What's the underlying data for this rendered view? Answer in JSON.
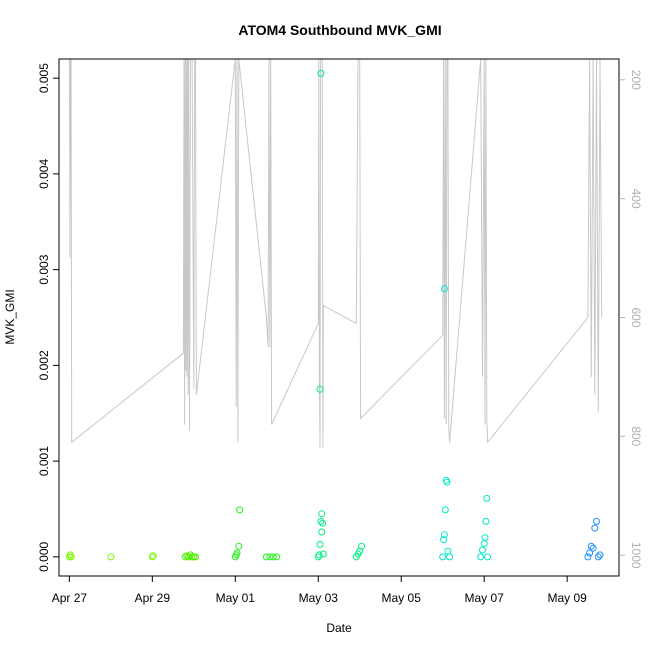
{
  "chart_data": {
    "type": "scatter",
    "title": "ATOM4 Southbound MVK_GMI",
    "xlabel": "Date",
    "ylabel": "MVK_GMI",
    "x_ticks": [
      "Apr 27",
      "Apr 29",
      "May 01",
      "May 03",
      "May 05",
      "May 07",
      "May 09"
    ],
    "y_ticks": [
      "0.000",
      "0.001",
      "0.002",
      "0.003",
      "0.004",
      "0.005"
    ],
    "y2_ticks": [
      "200",
      "400",
      "600",
      "800",
      "1000"
    ],
    "x_range_days": [
      "2016-04-26T18:00",
      "2016-05-10T06:00"
    ],
    "ylim": [
      -0.0002,
      0.0052
    ],
    "y2lim": [
      1035,
      165
    ],
    "y2_reversed": true,
    "colors": {
      "flight_track": "#c8c8c8",
      "axis": "#000000",
      "right_axis": "#b0b0b0"
    },
    "series": [
      {
        "values_note": "",
        "color": "#7cfc00",
        "points": [
          [
            "2016-04-27T00:00",
            0.0
          ],
          [
            "2016-04-27T00:30",
            2e-05
          ],
          [
            "2016-04-27T01:00",
            0.0
          ],
          [
            "2016-04-28T00:00",
            0.0
          ],
          [
            "2016-04-29T00:00",
            0.0
          ],
          [
            "2016-04-29T00:30",
            1e-05
          ]
        ]
      },
      {
        "color": "#4cf000",
        "points": [
          [
            "2016-04-29T19:00",
            0.0
          ],
          [
            "2016-04-29T20:00",
            1e-05
          ],
          [
            "2016-04-29T21:00",
            0.0
          ],
          [
            "2016-04-29T22:00",
            2e-05
          ],
          [
            "2016-04-29T23:00",
            0.0
          ],
          [
            "2016-04-30T00:00",
            0.0
          ],
          [
            "2016-04-30T01:00",
            0.0
          ]
        ]
      },
      {
        "color": "#28f020",
        "points": [
          [
            "2016-05-01T00:00",
            0.0
          ],
          [
            "2016-05-01T00:30",
            2e-05
          ],
          [
            "2016-05-01T01:00",
            4e-05
          ],
          [
            "2016-05-01T02:00",
            0.00011
          ],
          [
            "2016-05-01T02:30",
            0.00049
          ],
          [
            "2016-05-01T18:00",
            0.0
          ],
          [
            "2016-05-01T20:00",
            0.0
          ],
          [
            "2016-05-01T22:00",
            0.0
          ],
          [
            "2016-05-02T00:00",
            0.0
          ]
        ]
      },
      {
        "color": "#00f080",
        "points": [
          [
            "2016-05-03T00:00",
            0.0
          ],
          [
            "2016-05-03T00:30",
            2e-05
          ],
          [
            "2016-05-03T01:00",
            0.00013
          ],
          [
            "2016-05-03T01:30",
            0.00037
          ],
          [
            "2016-05-03T02:00",
            0.00026
          ],
          [
            "2016-05-03T02:00",
            0.00045
          ],
          [
            "2016-05-03T02:30",
            0.00035
          ],
          [
            "2016-05-03T03:00",
            3e-05
          ],
          [
            "2016-05-03T01:30",
            0.00505
          ],
          [
            "2016-05-03T01:00",
            0.00175
          ],
          [
            "2016-05-03T22:00",
            0.0
          ],
          [
            "2016-05-03T23:00",
            3e-05
          ],
          [
            "2016-05-04T00:00",
            6e-05
          ],
          [
            "2016-05-04T01:00",
            0.00011
          ]
        ]
      },
      {
        "color": "#00e8c8",
        "points": [
          [
            "2016-05-06T00:00",
            0.0
          ],
          [
            "2016-05-06T00:30",
            0.00018
          ],
          [
            "2016-05-06T01:00",
            0.00023
          ],
          [
            "2016-05-06T01:30",
            0.00049
          ],
          [
            "2016-05-06T02:00",
            0.0008
          ],
          [
            "2016-05-06T02:30",
            0.00078
          ],
          [
            "2016-05-06T03:00",
            6e-05
          ],
          [
            "2016-05-06T04:00",
            0.0
          ],
          [
            "2016-05-06T01:00",
            0.0028
          ],
          [
            "2016-05-06T22:00",
            0.0
          ],
          [
            "2016-05-06T23:00",
            7e-05
          ],
          [
            "2016-05-07T00:00",
            0.00014
          ],
          [
            "2016-05-07T00:30",
            0.0002
          ],
          [
            "2016-05-07T01:00",
            0.00037
          ],
          [
            "2016-05-07T01:30",
            0.00061
          ],
          [
            "2016-05-07T02:00",
            0.0
          ]
        ]
      },
      {
        "color": "#1e90ff",
        "points": [
          [
            "2016-05-09T12:00",
            0.0
          ],
          [
            "2016-05-09T13:00",
            4e-05
          ],
          [
            "2016-05-09T14:00",
            0.00011
          ],
          [
            "2016-05-09T15:00",
            9e-05
          ],
          [
            "2016-05-09T16:00",
            0.0003
          ],
          [
            "2016-05-09T17:00",
            0.00037
          ],
          [
            "2016-05-09T18:00",
            0.0
          ],
          [
            "2016-05-09T19:00",
            2e-05
          ]
        ]
      }
    ],
    "flight_track_points": [
      [
        "2016-04-27T00:00",
        165
      ],
      [
        "2016-04-27T00:20",
        500
      ],
      [
        "2016-04-27T00:40",
        165
      ],
      [
        "2016-04-27T01:00",
        165
      ],
      [
        "2016-04-27T01:20",
        810
      ],
      [
        "2016-04-29T18:00",
        660
      ],
      [
        "2016-04-29T18:20",
        165
      ],
      [
        "2016-04-29T18:40",
        780
      ],
      [
        "2016-04-29T19:00",
        165
      ],
      [
        "2016-04-29T19:20",
        690
      ],
      [
        "2016-04-29T19:40",
        165
      ],
      [
        "2016-04-29T20:00",
        700
      ],
      [
        "2016-04-29T20:20",
        165
      ],
      [
        "2016-04-29T20:40",
        730
      ],
      [
        "2016-04-29T21:00",
        165
      ],
      [
        "2016-04-29T21:30",
        790
      ],
      [
        "2016-04-29T22:00",
        165
      ],
      [
        "2016-04-29T23:00",
        165
      ],
      [
        "2016-04-30T00:00",
        720
      ],
      [
        "2016-04-30T00:30",
        165
      ],
      [
        "2016-04-30T01:00",
        165
      ],
      [
        "2016-04-30T01:30",
        730
      ],
      [
        "2016-05-01T00:00",
        165
      ],
      [
        "2016-05-01T00:30",
        750
      ],
      [
        "2016-05-01T01:00",
        165
      ],
      [
        "2016-05-01T01:30",
        810
      ],
      [
        "2016-05-01T02:00",
        165
      ],
      [
        "2016-05-01T18:00",
        600
      ],
      [
        "2016-05-01T19:00",
        650
      ],
      [
        "2016-05-01T19:30",
        165
      ],
      [
        "2016-05-01T20:00",
        650
      ],
      [
        "2016-05-01T20:30",
        165
      ],
      [
        "2016-05-01T21:00",
        780
      ],
      [
        "2016-05-03T00:00",
        610
      ],
      [
        "2016-05-03T00:20",
        165
      ],
      [
        "2016-05-03T00:40",
        700
      ],
      [
        "2016-05-03T01:00",
        820
      ],
      [
        "2016-05-03T01:20",
        165
      ],
      [
        "2016-05-03T01:40",
        165
      ],
      [
        "2016-05-03T02:00",
        165
      ],
      [
        "2016-05-03T02:20",
        165
      ],
      [
        "2016-05-03T02:40",
        820
      ],
      [
        "2016-05-03T03:00",
        580
      ],
      [
        "2016-05-03T22:00",
        610
      ],
      [
        "2016-05-03T23:00",
        165
      ],
      [
        "2016-05-04T00:00",
        165
      ],
      [
        "2016-05-04T00:30",
        770
      ],
      [
        "2016-05-06T00:00",
        630
      ],
      [
        "2016-05-06T00:30",
        165
      ],
      [
        "2016-05-06T01:00",
        770
      ],
      [
        "2016-05-06T01:30",
        165
      ],
      [
        "2016-05-06T02:00",
        780
      ],
      [
        "2016-05-06T02:30",
        165
      ],
      [
        "2016-05-06T03:00",
        165
      ],
      [
        "2016-05-06T03:30",
        790
      ],
      [
        "2016-05-06T04:00",
        810
      ],
      [
        "2016-05-06T22:00",
        165
      ],
      [
        "2016-05-06T23:00",
        700
      ],
      [
        "2016-05-07T00:00",
        165
      ],
      [
        "2016-05-07T00:30",
        780
      ],
      [
        "2016-05-07T01:00",
        165
      ],
      [
        "2016-05-07T01:30",
        770
      ],
      [
        "2016-05-07T02:00",
        810
      ],
      [
        "2016-05-09T12:00",
        600
      ],
      [
        "2016-05-09T13:00",
        165
      ],
      [
        "2016-05-09T14:00",
        700
      ],
      [
        "2016-05-09T15:00",
        165
      ],
      [
        "2016-05-09T16:00",
        730
      ],
      [
        "2016-05-09T17:00",
        165
      ],
      [
        "2016-05-09T18:00",
        760
      ],
      [
        "2016-05-09T19:00",
        165
      ],
      [
        "2016-05-09T20:00",
        600
      ]
    ]
  }
}
